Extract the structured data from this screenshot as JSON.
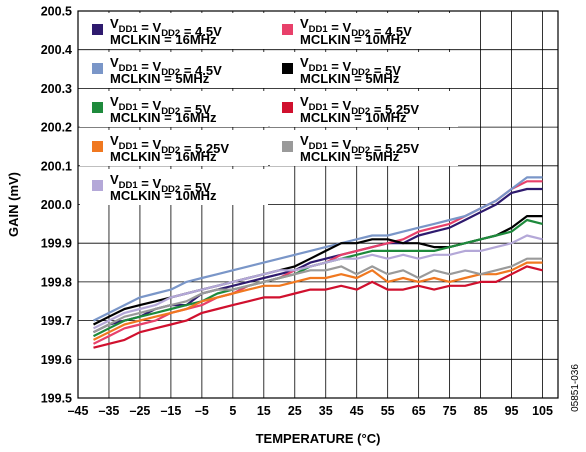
{
  "figure_code": "05851-036",
  "chart_data": {
    "type": "line",
    "xlabel": "TEMPERATURE (°C)",
    "ylabel": "GAIN (mV)",
    "xlim": [
      -45,
      110
    ],
    "ylim": [
      199.5,
      200.5
    ],
    "x_ticks": [
      -45,
      -35,
      -25,
      -15,
      -5,
      5,
      15,
      25,
      35,
      45,
      55,
      65,
      75,
      85,
      95,
      105
    ],
    "x_tick_labels": [
      "–45",
      "–35",
      "–25",
      "–15",
      "–5",
      "5",
      "15",
      "25",
      "35",
      "45",
      "55",
      "65",
      "75",
      "85",
      "95",
      "105"
    ],
    "y_ticks": [
      199.5,
      199.6,
      199.7,
      199.8,
      199.9,
      200.0,
      200.1,
      200.2,
      200.3,
      200.4,
      200.5
    ],
    "y_tick_labels": [
      "199.5",
      "199.6",
      "199.7",
      "199.8",
      "199.9",
      "200.0",
      "200.1",
      "200.2",
      "200.3",
      "200.4",
      "200.5"
    ],
    "grid": true,
    "legend_position": "top-left",
    "x": [
      -40,
      -35,
      -30,
      -25,
      -20,
      -15,
      -10,
      -5,
      0,
      5,
      10,
      15,
      20,
      25,
      30,
      35,
      40,
      45,
      50,
      55,
      60,
      65,
      70,
      75,
      80,
      85,
      90,
      95,
      100,
      105
    ],
    "series": [
      {
        "vdd": "4.5V",
        "mclkin": "16MHz",
        "color": "#2e1a6e",
        "values": [
          199.67,
          199.69,
          199.7,
          199.71,
          199.73,
          199.74,
          199.74,
          199.77,
          199.78,
          199.79,
          199.8,
          199.81,
          199.82,
          199.83,
          199.85,
          199.86,
          199.87,
          199.88,
          199.89,
          199.9,
          199.9,
          199.92,
          199.93,
          199.94,
          199.96,
          199.98,
          200.0,
          200.03,
          200.04,
          200.04
        ]
      },
      {
        "vdd": "4.5V",
        "mclkin": "10MHz",
        "color": "#e8406a",
        "values": [
          199.64,
          199.66,
          199.68,
          199.69,
          199.7,
          199.72,
          199.73,
          199.74,
          199.76,
          199.77,
          199.79,
          199.8,
          199.81,
          199.83,
          199.84,
          199.85,
          199.87,
          199.88,
          199.89,
          199.9,
          199.91,
          199.93,
          199.94,
          199.95,
          199.97,
          199.99,
          200.01,
          200.04,
          200.06,
          200.06
        ]
      },
      {
        "vdd": "4.5V",
        "mclkin": "5MHz",
        "color": "#7a96c8",
        "values": [
          199.7,
          199.72,
          199.74,
          199.76,
          199.77,
          199.78,
          199.8,
          199.81,
          199.82,
          199.83,
          199.84,
          199.85,
          199.86,
          199.87,
          199.88,
          199.89,
          199.9,
          199.91,
          199.92,
          199.92,
          199.93,
          199.94,
          199.95,
          199.96,
          199.97,
          199.99,
          200.01,
          200.04,
          200.07,
          200.07
        ]
      },
      {
        "vdd": "5V",
        "mclkin": "5MHz",
        "color": "#000000",
        "values": [
          199.69,
          199.71,
          199.73,
          199.74,
          199.75,
          199.76,
          199.77,
          199.78,
          199.79,
          199.8,
          199.81,
          199.82,
          199.83,
          199.84,
          199.86,
          199.88,
          199.9,
          199.9,
          199.91,
          199.91,
          199.9,
          199.9,
          199.89,
          199.89,
          199.9,
          199.91,
          199.92,
          199.94,
          199.97,
          199.97
        ]
      },
      {
        "vdd": "5V",
        "mclkin": "16MHz",
        "color": "#1e8a3c",
        "values": [
          199.66,
          199.68,
          199.7,
          199.71,
          199.72,
          199.73,
          199.74,
          199.75,
          199.77,
          199.78,
          199.79,
          199.8,
          199.81,
          199.82,
          199.84,
          199.85,
          199.86,
          199.87,
          199.88,
          199.88,
          199.88,
          199.88,
          199.88,
          199.89,
          199.9,
          199.91,
          199.92,
          199.93,
          199.96,
          199.95
        ]
      },
      {
        "vdd": "5.25V",
        "mclkin": "10MHz",
        "color": "#d0102e",
        "values": [
          199.63,
          199.64,
          199.65,
          199.67,
          199.68,
          199.69,
          199.7,
          199.72,
          199.73,
          199.74,
          199.75,
          199.76,
          199.76,
          199.77,
          199.78,
          199.78,
          199.79,
          199.78,
          199.8,
          199.78,
          199.78,
          199.79,
          199.78,
          199.79,
          199.79,
          199.8,
          199.8,
          199.82,
          199.84,
          199.83
        ]
      },
      {
        "vdd": "5.25V",
        "mclkin": "16MHz",
        "color": "#f07820",
        "values": [
          199.65,
          199.67,
          199.69,
          199.7,
          199.71,
          199.72,
          199.73,
          199.75,
          199.76,
          199.77,
          199.78,
          199.79,
          199.79,
          199.8,
          199.81,
          199.81,
          199.82,
          199.81,
          199.83,
          199.8,
          199.81,
          199.8,
          199.81,
          199.8,
          199.81,
          199.82,
          199.82,
          199.83,
          199.85,
          199.85
        ]
      },
      {
        "vdd": "5.25V",
        "mclkin": "5MHz",
        "color": "#9a9a9a",
        "values": [
          199.67,
          199.69,
          199.71,
          199.72,
          199.73,
          199.74,
          199.75,
          199.77,
          199.78,
          199.78,
          199.79,
          199.8,
          199.81,
          199.82,
          199.83,
          199.83,
          199.84,
          199.82,
          199.84,
          199.82,
          199.83,
          199.81,
          199.83,
          199.82,
          199.83,
          199.82,
          199.83,
          199.84,
          199.86,
          199.86
        ]
      },
      {
        "vdd": "5V",
        "mclkin": "10MHz",
        "color": "#b4a8d8",
        "values": [
          199.68,
          199.7,
          199.72,
          199.73,
          199.74,
          199.76,
          199.77,
          199.78,
          199.79,
          199.8,
          199.81,
          199.82,
          199.83,
          199.83,
          199.84,
          199.85,
          199.86,
          199.86,
          199.87,
          199.86,
          199.87,
          199.86,
          199.87,
          199.87,
          199.88,
          199.88,
          199.89,
          199.9,
          199.92,
          199.91
        ]
      }
    ],
    "legend": [
      {
        "series": 0,
        "label_text": "= V",
        "eq_text": " = ",
        "clk_label": "MCLKIN = "
      },
      {
        "series": 1
      },
      {
        "series": 2
      },
      {
        "series": 3
      },
      {
        "series": 4
      },
      {
        "series": 5
      },
      {
        "series": 6
      },
      {
        "series": 7
      },
      {
        "series": 8
      }
    ]
  }
}
